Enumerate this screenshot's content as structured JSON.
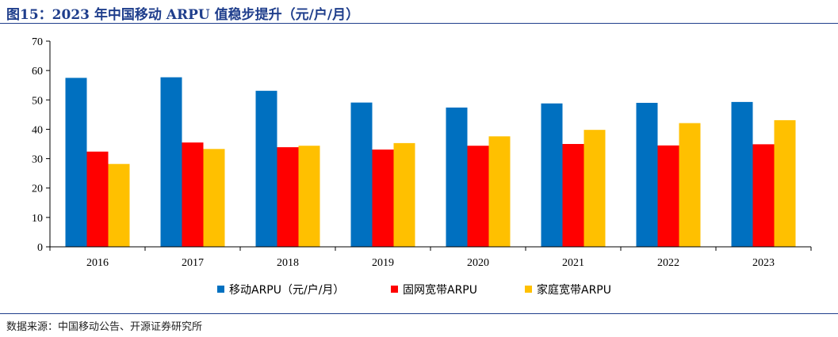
{
  "title": "图15：2023 年中国移动 ARPU 值稳步提升（元/户/月）",
  "source": "数据来源：中国移动公告、开源证券研究所",
  "chart_data": {
    "type": "bar",
    "title": "图15：2023 年中国移动 ARPU 值稳步提升（元/户/月）",
    "xlabel": "",
    "ylabel": "",
    "categories": [
      "2016",
      "2017",
      "2018",
      "2019",
      "2020",
      "2021",
      "2022",
      "2023"
    ],
    "ylim": [
      0,
      70
    ],
    "yticks": [
      0,
      10,
      20,
      30,
      40,
      50,
      60,
      70
    ],
    "grid": false,
    "legend_position": "bottom",
    "series": [
      {
        "name": "移动ARPU（元/户/月）",
        "color": "#0070c0",
        "values": [
          57.5,
          57.7,
          53.1,
          49.1,
          47.4,
          48.8,
          49.0,
          49.3
        ]
      },
      {
        "name": "固网宽带ARPU",
        "color": "#ff0000",
        "values": [
          32.4,
          35.5,
          33.9,
          33.1,
          34.4,
          35.0,
          34.5,
          34.9
        ]
      },
      {
        "name": "家庭宽带ARPU",
        "color": "#ffc000",
        "values": [
          28.2,
          33.3,
          34.4,
          35.3,
          37.6,
          39.8,
          42.1,
          43.1
        ]
      }
    ]
  }
}
